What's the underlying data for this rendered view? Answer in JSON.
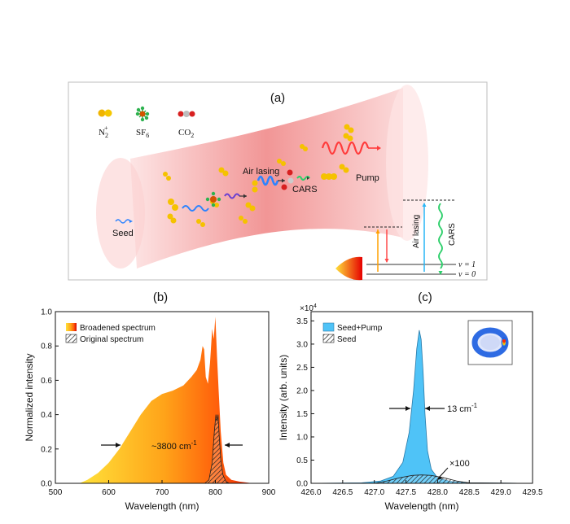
{
  "panel_a": {
    "label": "(a)",
    "legend": [
      {
        "name": "N2+",
        "text": "N",
        "sub": "2",
        "sup": "+",
        "color": "#f0b400"
      },
      {
        "name": "SF6",
        "text": "SF",
        "sub": "6",
        "color": "#1fa64a"
      },
      {
        "name": "CO2",
        "text": "CO",
        "sub": "2",
        "color": "#c9c9c9"
      }
    ],
    "labels": {
      "seed": "Seed",
      "air_lasing": "Air lasing",
      "cars": "CARS",
      "pump": "Pump"
    },
    "energy_diagram": {
      "air_lasing": "Air lasing",
      "cars": "CARS",
      "v1": "v = 1",
      "v0": "v = 0"
    }
  },
  "panel_b": {
    "label": "(b)",
    "annotation": "~3800 cm",
    "annotation_sup": "-1",
    "legend": [
      "Broadened spectrum",
      "Original spectrum"
    ]
  },
  "panel_c": {
    "label": "(c)",
    "annotation": "13 cm",
    "annotation_sup": "-1",
    "scale_note": "×100",
    "multiplier": "×10",
    "multiplier_sup": "4",
    "legend": [
      "Seed+Pump",
      "Seed"
    ]
  },
  "chart_data": [
    {
      "type": "area",
      "panel": "(b)",
      "title": "",
      "xlabel": "Wavelength (nm)",
      "ylabel": "Normalized intensity",
      "xlim": [
        500,
        900
      ],
      "ylim": [
        0,
        1.0
      ],
      "xticks": [
        500,
        600,
        700,
        800,
        900
      ],
      "yticks": [
        0.0,
        0.2,
        0.4,
        0.6,
        0.8,
        1.0
      ],
      "series": [
        {
          "name": "Broadened spectrum",
          "x": [
            545,
            560,
            580,
            600,
            620,
            640,
            660,
            680,
            700,
            720,
            740,
            755,
            765,
            772,
            776,
            779,
            782,
            786,
            790,
            794,
            797,
            800,
            803,
            806,
            810,
            815,
            820,
            830,
            845,
            870,
            900
          ],
          "y": [
            0.0,
            0.02,
            0.06,
            0.12,
            0.2,
            0.3,
            0.4,
            0.48,
            0.52,
            0.54,
            0.57,
            0.62,
            0.66,
            0.72,
            0.8,
            0.78,
            0.62,
            0.58,
            0.7,
            0.9,
            0.84,
            0.97,
            0.74,
            0.55,
            0.3,
            0.12,
            0.05,
            0.02,
            0.01,
            0.0,
            0.0
          ]
        },
        {
          "name": "Original spectrum",
          "x": [
            780,
            788,
            794,
            798,
            801,
            803,
            805,
            807,
            810,
            814,
            820,
            826
          ],
          "y": [
            0.0,
            0.02,
            0.12,
            0.3,
            0.4,
            0.36,
            0.4,
            0.28,
            0.14,
            0.05,
            0.01,
            0.0
          ]
        }
      ]
    },
    {
      "type": "area",
      "panel": "(c)",
      "title": "",
      "xlabel": "Wavelength (nm)",
      "ylabel": "Intensity (arb. units)",
      "xlim": [
        426.0,
        429.5
      ],
      "ylim": [
        0,
        3.7
      ],
      "xticks": [
        426.0,
        426.5,
        427.0,
        427.5,
        428.0,
        428.5,
        429.0,
        429.5
      ],
      "yticks": [
        0.0,
        0.5,
        1.0,
        1.5,
        2.0,
        2.5,
        3.0,
        3.5
      ],
      "series": [
        {
          "name": "Seed+Pump",
          "x": [
            426.0,
            426.8,
            427.1,
            427.3,
            427.45,
            427.55,
            427.62,
            427.67,
            427.71,
            427.74,
            427.77,
            427.8,
            427.84,
            427.9,
            428.0,
            428.2,
            428.5,
            429.5
          ],
          "y": [
            0.0,
            0.01,
            0.05,
            0.15,
            0.45,
            1.1,
            2.0,
            2.9,
            3.3,
            3.1,
            2.4,
            1.5,
            0.7,
            0.3,
            0.12,
            0.04,
            0.01,
            0.0
          ]
        },
        {
          "name": "Seed",
          "x": [
            426.0,
            427.0,
            427.2,
            427.4,
            427.6,
            427.75,
            427.9,
            428.1,
            428.3,
            428.5,
            429.5
          ],
          "y": [
            0.0,
            0.0,
            0.05,
            0.12,
            0.17,
            0.18,
            0.17,
            0.12,
            0.05,
            0.01,
            0.0
          ]
        }
      ]
    }
  ]
}
